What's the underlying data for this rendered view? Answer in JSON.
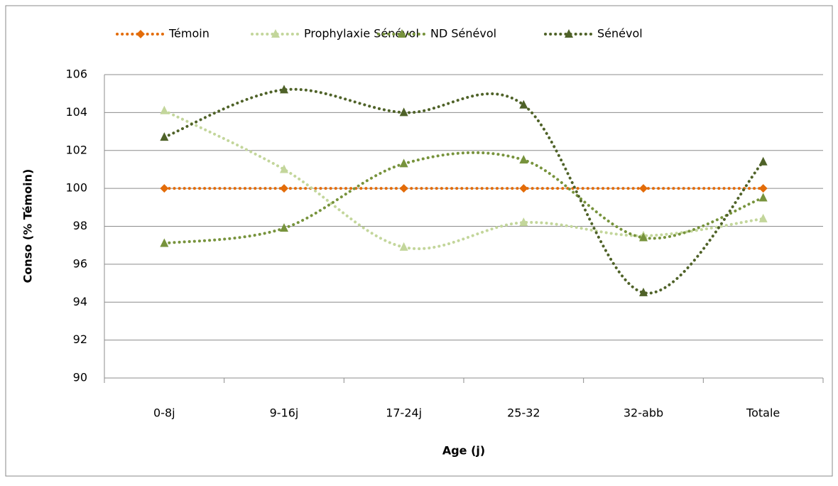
{
  "chart_data": {
    "type": "line",
    "x_label": "Age (j)",
    "y_label": "Conso (% Témoin)",
    "categories": [
      "0-8j",
      "9-16j",
      "17-24j",
      "25-32",
      "32-abb",
      "Totale"
    ],
    "series": [
      {
        "name": "Témoin",
        "color": "#e36c09",
        "marker": "diamond",
        "values": [
          100,
          100,
          100,
          100,
          100,
          100
        ]
      },
      {
        "name": "Prophylaxie Sénévol",
        "color": "#c3d69b",
        "marker": "triangle",
        "values": [
          104.1,
          101.0,
          96.9,
          98.2,
          97.5,
          98.4
        ]
      },
      {
        "name": "ND Sénévol",
        "color": "#77933c",
        "marker": "triangle",
        "values": [
          97.1,
          97.9,
          101.3,
          101.5,
          97.4,
          99.5
        ]
      },
      {
        "name": "Sénévol",
        "color": "#4f6228",
        "marker": "triangle",
        "values": [
          102.7,
          105.2,
          104.0,
          104.4,
          94.5,
          101.4
        ]
      }
    ],
    "ylim": [
      90,
      106
    ],
    "yticks": [
      90,
      92,
      94,
      96,
      98,
      100,
      102,
      104,
      106
    ],
    "grid": true,
    "smooth": true,
    "legend": "top"
  }
}
